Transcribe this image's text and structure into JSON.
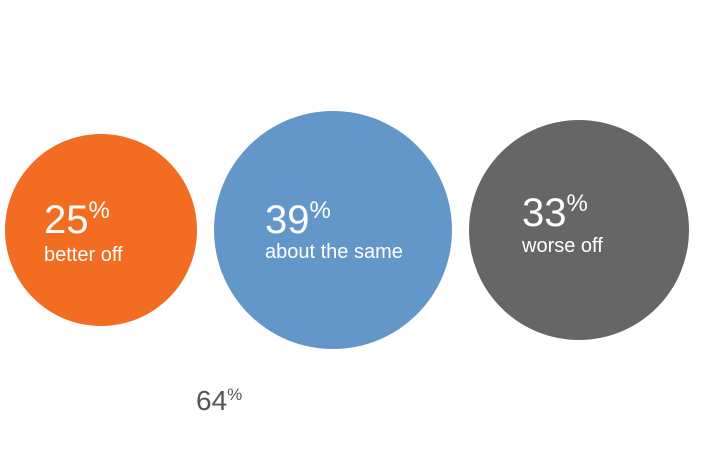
{
  "chart_data": {
    "type": "bubble",
    "series": [
      {
        "value": 25,
        "unit": "%",
        "label": "better off",
        "color": "#f26d21"
      },
      {
        "value": 39,
        "unit": "%",
        "label": "about the same",
        "color": "#6497c9"
      },
      {
        "value": 33,
        "unit": "%",
        "label": "worse off",
        "color": "#666666"
      }
    ],
    "annotations": [
      {
        "value": 64,
        "unit": "%"
      }
    ]
  }
}
